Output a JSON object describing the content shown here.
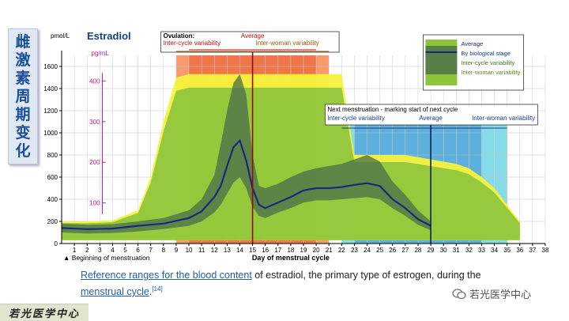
{
  "side_title": [
    "雌",
    "激",
    "素",
    "周",
    "期",
    "变",
    "化"
  ],
  "caption": {
    "link1": "Reference ranges for the blood content",
    "text1": " of estradiol, the primary type of estrogen, during the ",
    "link2": "menstrual cycle",
    "text2": ".",
    "ref": "[14]"
  },
  "footer_logo": "若光医学中心",
  "watermark": "若光医学中心",
  "chart_data": {
    "type": "area",
    "title": "Estradiol",
    "y_unit_left": "pmol/L",
    "y_unit_right": "pg/mL",
    "xlabel": "Day of menstrual cycle",
    "x_start_label": "Beginning of menstruation",
    "xlim": [
      0,
      38
    ],
    "ylim": [
      0,
      1700
    ],
    "yticks_pmol": [
      0,
      200,
      400,
      600,
      800,
      1000,
      1200,
      1400,
      1600
    ],
    "yticks_pg": [
      100,
      200,
      300,
      400
    ],
    "xticks": [
      1,
      2,
      3,
      4,
      5,
      6,
      7,
      8,
      9,
      10,
      11,
      12,
      13,
      14,
      15,
      16,
      17,
      18,
      19,
      20,
      21,
      22,
      23,
      24,
      25,
      26,
      27,
      28,
      29,
      30,
      31,
      32,
      33,
      34,
      35,
      36,
      37,
      38
    ],
    "colors": {
      "yellow": "#f4f23c",
      "light_green": "#8cc43c",
      "mid_green": "#5b9e3c",
      "dark_band": "#4a6e4a",
      "average": "#1a2a7a",
      "orange": "#f47a3c",
      "cyan": "#5cd0e0",
      "blue": "#3c8cd0"
    },
    "series": [
      {
        "name": "Average",
        "x": [
          0,
          2,
          4,
          6,
          8,
          10,
          11,
          12,
          12.5,
          13,
          13.5,
          14,
          14.5,
          15,
          15.5,
          16,
          17,
          18,
          19,
          20,
          21,
          22,
          23,
          24,
          25,
          26,
          27,
          28,
          29
        ],
        "y": [
          140,
          130,
          135,
          160,
          180,
          230,
          290,
          420,
          520,
          700,
          870,
          930,
          750,
          500,
          350,
          320,
          370,
          420,
          480,
          500,
          500,
          510,
          530,
          545,
          520,
          400,
          320,
          220,
          160
        ]
      },
      {
        "name": "Inter-cycle variability",
        "x": [
          0,
          2,
          4,
          6,
          8,
          10,
          11,
          12,
          12.5,
          13,
          13.5,
          14,
          14.5,
          15,
          15.5,
          16,
          17,
          18,
          19,
          20,
          21,
          22,
          23,
          24,
          25,
          26,
          27,
          28,
          29
        ],
        "lower": [
          100,
          90,
          95,
          110,
          130,
          160,
          200,
          280,
          350,
          450,
          550,
          600,
          500,
          330,
          250,
          230,
          280,
          320,
          370,
          390,
          390,
          400,
          410,
          420,
          400,
          320,
          250,
          170,
          120
        ],
        "upper": [
          180,
          170,
          175,
          200,
          230,
          300,
          400,
          620,
          900,
          1200,
          1450,
          1530,
          1350,
          800,
          520,
          500,
          540,
          600,
          650,
          680,
          700,
          720,
          760,
          800,
          740,
          560,
          440,
          300,
          200
        ]
      },
      {
        "name": "Inter-woman variability",
        "x": [
          0,
          2,
          4,
          6,
          7,
          8,
          9,
          10,
          11,
          12,
          13,
          14,
          15,
          16,
          17,
          18,
          19,
          20,
          21,
          22,
          23,
          24,
          25,
          26,
          27,
          28,
          29,
          30,
          31,
          32,
          33,
          34,
          35,
          36
        ],
        "lower": [
          30,
          30,
          30,
          30,
          30,
          30,
          30,
          30,
          30,
          30,
          30,
          30,
          30,
          30,
          30,
          30,
          30,
          30,
          30,
          30,
          30,
          30,
          30,
          30,
          30,
          30,
          30,
          30,
          30,
          30,
          30,
          30,
          30,
          30
        ],
        "upper": [
          200,
          200,
          210,
          300,
          600,
          1100,
          1500,
          1530,
          1530,
          1530,
          1530,
          1530,
          1530,
          1530,
          1530,
          1530,
          1530,
          1530,
          1530,
          1530,
          800,
          800,
          800,
          800,
          800,
          780,
          760,
          740,
          720,
          680,
          600,
          500,
          350,
          200
        ]
      }
    ],
    "legend": {
      "placement": "top-right",
      "entries": [
        "Average",
        "By biological stage",
        "Inter-cycle variability",
        "Inter-woman variability"
      ]
    },
    "annotations": {
      "ovulation_box": {
        "title": "Ovulation:",
        "average": "Average",
        "inter_cycle": "Inter-cycle variability",
        "inter_woman": "Inter-woman variability",
        "average_day": 15,
        "inter_cycle_range": [
          10,
          20
        ],
        "inter_woman_range": [
          9,
          21
        ]
      },
      "next_menstruation_box": {
        "title": "Next menstruation",
        "subtitle": " - marking start of next cycle",
        "average": "Average",
        "inter_cycle": "Inter-cycle variability",
        "inter_woman": "Inter-woman variability",
        "average_day": 29,
        "inter_cycle_range": [
          23,
          33
        ],
        "inter_woman_range": [
          22,
          35
        ]
      }
    }
  }
}
